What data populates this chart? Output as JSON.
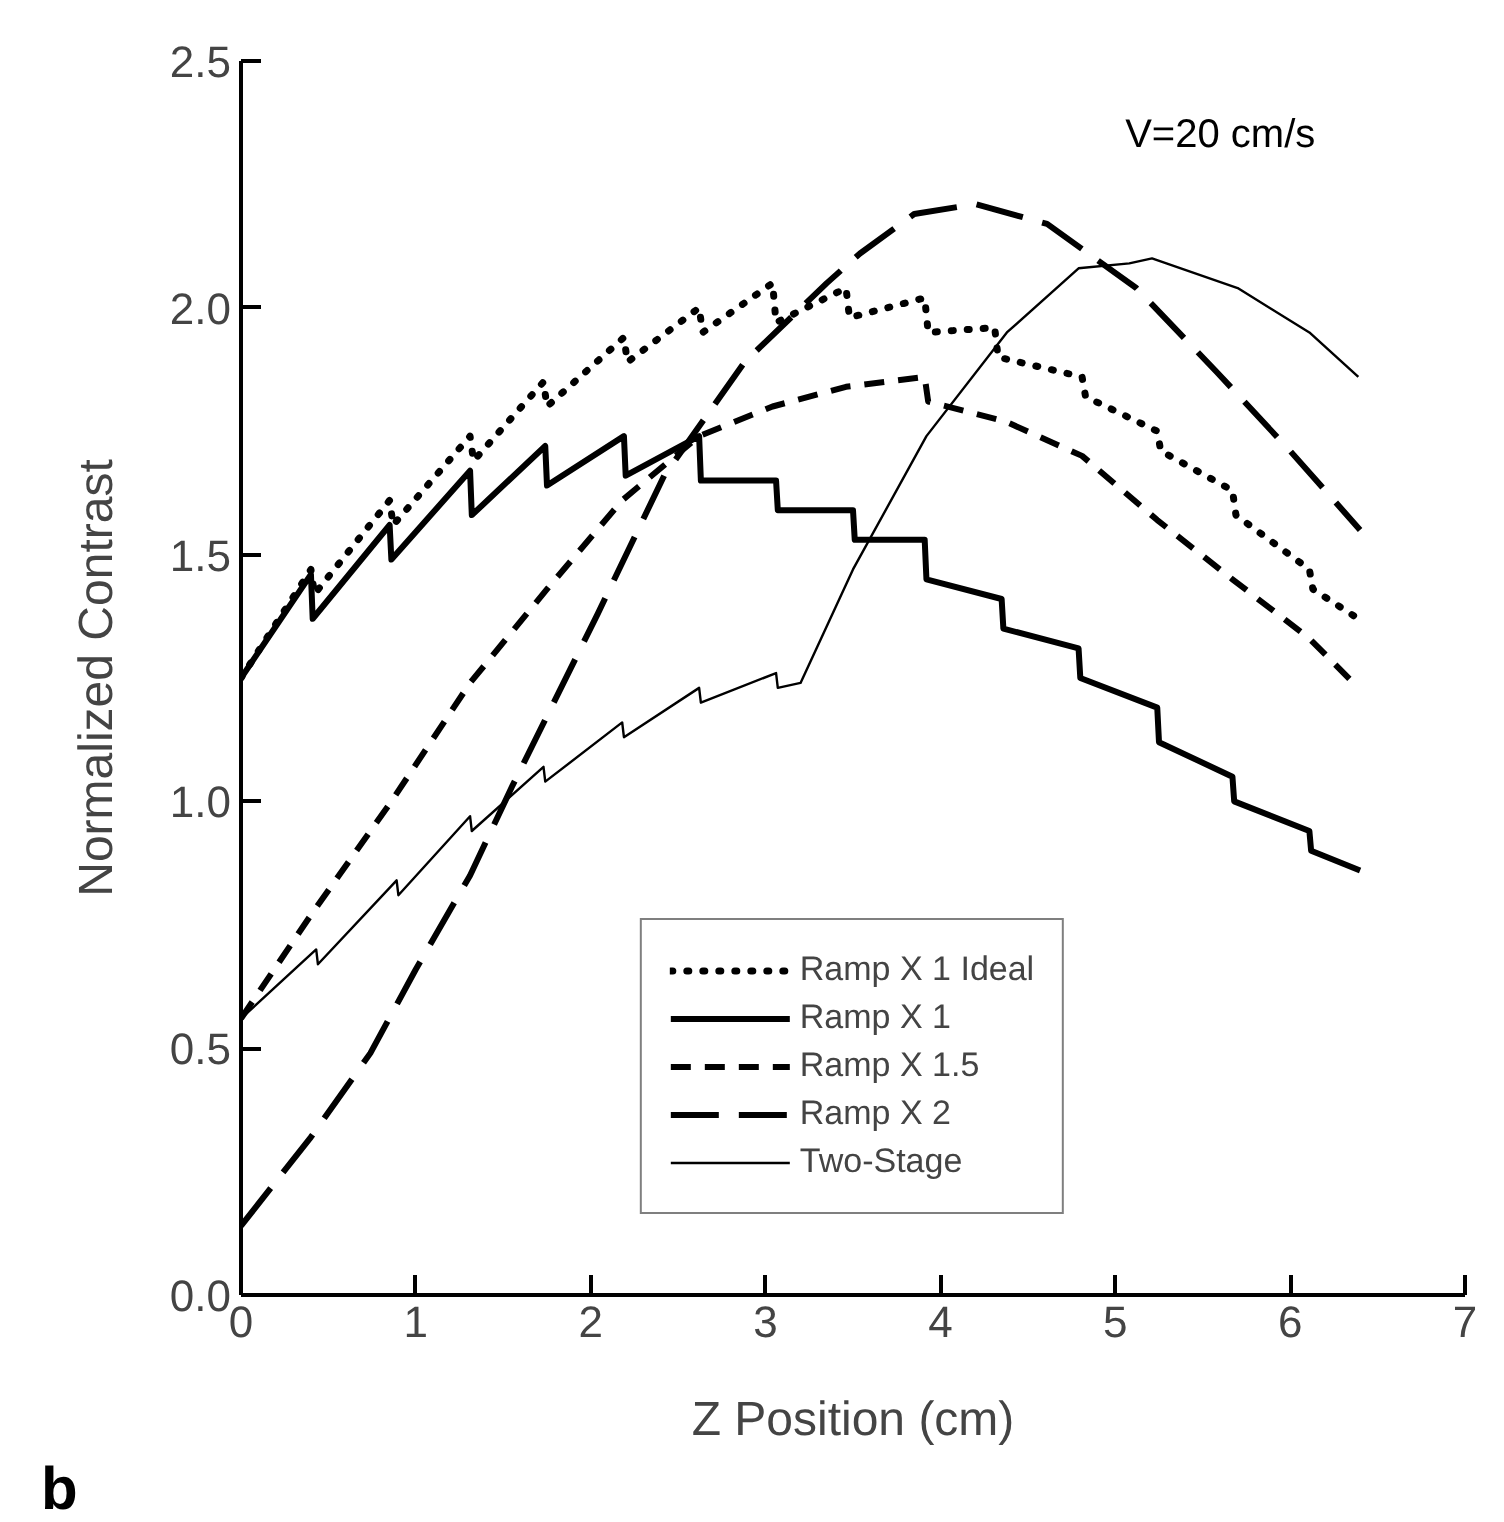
{
  "chart_data": {
    "type": "line",
    "xlabel": "Z Position (cm)",
    "ylabel": "Normalized Contrast",
    "annotations": [
      "V=20 cm/s",
      "b"
    ],
    "xlim": [
      0,
      7
    ],
    "xticks": [
      0,
      1,
      2,
      3,
      4,
      5,
      6,
      7
    ],
    "ylim": [
      0,
      2.5
    ],
    "yticks": [
      {
        "value": 0,
        "label": "0.0"
      },
      0.5,
      {
        "value": 1,
        "label": "1.0"
      },
      1.5,
      {
        "value": 2,
        "label": "2.0"
      },
      2.5
    ],
    "grid": false,
    "legend": "bottom",
    "marker": "none",
    "series": [
      {
        "name": "Ramp X 1 Ideal",
        "color": "#000000",
        "line_style": "dotted",
        "x": [
          0,
          0.4,
          0.42,
          0.85,
          0.87,
          1.31,
          1.33,
          1.73,
          1.75,
          2.19,
          2.21,
          2.62,
          2.64,
          3.04,
          3.06,
          3.46,
          3.48,
          3.91,
          3.93,
          4.31,
          4.33,
          4.81,
          4.83,
          5.24,
          5.26,
          5.67,
          5.69,
          6.11,
          6.13,
          6.39
        ],
        "values": [
          1.25,
          1.47,
          1.42,
          1.61,
          1.56,
          1.74,
          1.69,
          1.85,
          1.8,
          1.94,
          1.89,
          2.0,
          1.95,
          2.05,
          1.97,
          2.04,
          1.98,
          2.02,
          1.95,
          1.96,
          1.9,
          1.86,
          1.82,
          1.75,
          1.71,
          1.63,
          1.58,
          1.47,
          1.43,
          1.37
        ]
      },
      {
        "name": "Ramp X 1",
        "color": "#000000",
        "line_style": "solid",
        "x": [
          0,
          0.4,
          0.41,
          0.85,
          0.86,
          1.31,
          1.32,
          1.74,
          1.75,
          2.19,
          2.2,
          2.62,
          2.63,
          3.06,
          3.07,
          3.5,
          3.51,
          3.91,
          3.92,
          4.35,
          4.36,
          4.79,
          4.8,
          5.24,
          5.25,
          5.67,
          5.68,
          6.11,
          6.12,
          6.4
        ],
        "values": [
          1.25,
          1.46,
          1.37,
          1.56,
          1.49,
          1.67,
          1.58,
          1.72,
          1.64,
          1.74,
          1.66,
          1.74,
          1.65,
          1.65,
          1.59,
          1.59,
          1.53,
          1.53,
          1.45,
          1.41,
          1.35,
          1.31,
          1.25,
          1.19,
          1.12,
          1.05,
          1.0,
          0.94,
          0.9,
          0.86
        ]
      },
      {
        "name": "Ramp X 1.5",
        "color": "#000000",
        "line_style": "dashed",
        "x": [
          0,
          0.4,
          0.86,
          1.31,
          1.75,
          2.18,
          2.62,
          3.04,
          3.46,
          3.91,
          3.93,
          4.37,
          4.81,
          5.24,
          5.67,
          6.11,
          6.39
        ],
        "values": [
          0.56,
          0.77,
          1.0,
          1.24,
          1.43,
          1.61,
          1.74,
          1.8,
          1.84,
          1.86,
          1.81,
          1.77,
          1.7,
          1.57,
          1.45,
          1.33,
          1.23
        ]
      },
      {
        "name": "Ramp X 2",
        "color": "#000000",
        "line_style": "dashed",
        "x": [
          0,
          0.4,
          0.74,
          1.0,
          1.31,
          1.55,
          2.04,
          2.42,
          2.88,
          3.35,
          3.54,
          3.85,
          4.2,
          4.61,
          5.12,
          5.58,
          6.0,
          6.4
        ],
        "values": [
          0.14,
          0.32,
          0.49,
          0.66,
          0.85,
          1.03,
          1.38,
          1.66,
          1.89,
          2.05,
          2.11,
          2.19,
          2.21,
          2.17,
          2.04,
          1.87,
          1.71,
          1.55
        ]
      },
      {
        "name": "Two-Stage",
        "color": "#000000",
        "line_style": "solid",
        "x": [
          0,
          0.43,
          0.44,
          0.89,
          0.9,
          1.31,
          1.32,
          1.73,
          1.74,
          2.18,
          2.19,
          2.62,
          2.63,
          3.06,
          3.07,
          3.2,
          3.5,
          3.92,
          4.38,
          4.79,
          5.08,
          5.21,
          5.7,
          6.11,
          6.39
        ],
        "values": [
          0.56,
          0.7,
          0.67,
          0.84,
          0.81,
          0.97,
          0.94,
          1.07,
          1.04,
          1.16,
          1.13,
          1.23,
          1.2,
          1.26,
          1.23,
          1.24,
          1.47,
          1.74,
          1.95,
          2.08,
          2.09,
          2.1,
          2.04,
          1.95,
          1.86
        ]
      }
    ]
  }
}
